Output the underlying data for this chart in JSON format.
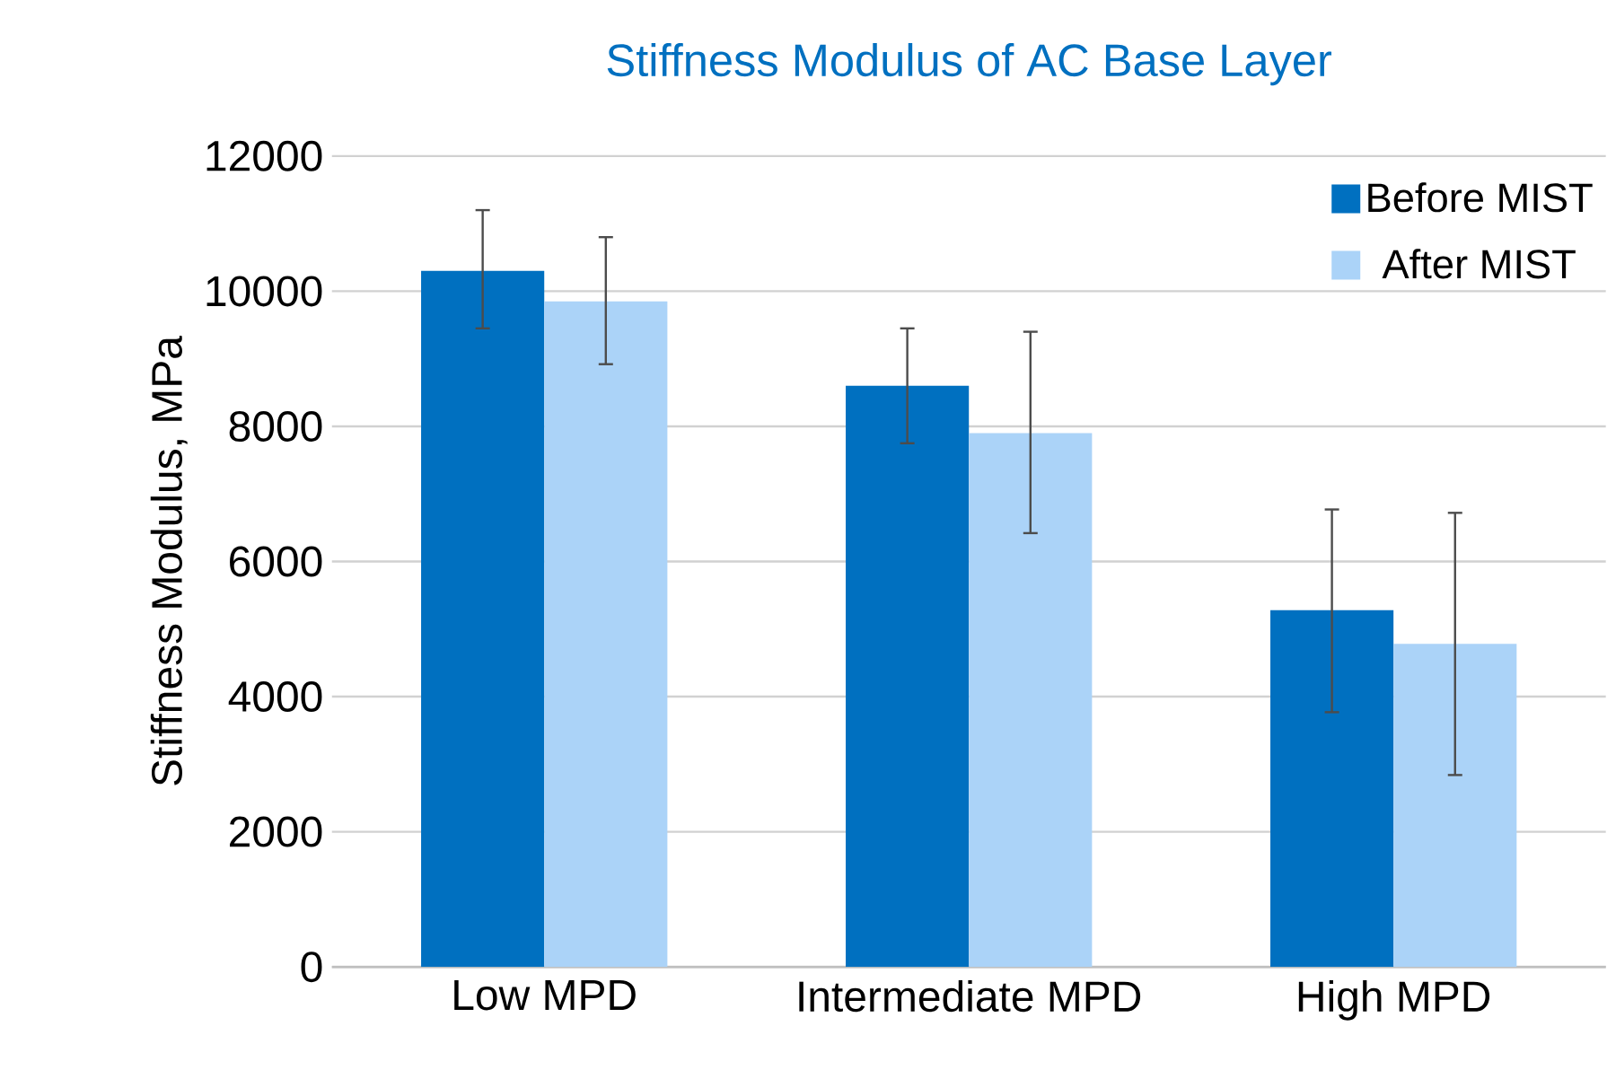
{
  "chart_data": {
    "type": "bar",
    "title": "Stiffness Modulus of AC Base Layer",
    "ylabel": "Stiffness Modulus, MPa",
    "categories": [
      "Low MPD",
      "Intermediate MPD",
      "High MPD"
    ],
    "series": [
      {
        "name": "Before MIST",
        "color": "#0070c0",
        "values": [
          10300,
          8600,
          5280
        ],
        "errors": [
          [
            9450,
            11200
          ],
          [
            7750,
            9450
          ],
          [
            3770,
            6770
          ]
        ]
      },
      {
        "name": "After MIST",
        "color": "#abd3f8",
        "values": [
          9850,
          7900,
          4780
        ],
        "errors": [
          [
            8920,
            10800
          ],
          [
            6420,
            9400
          ],
          [
            2840,
            6720
          ]
        ]
      }
    ],
    "ylim": [
      0,
      12000
    ],
    "yticks": [
      0,
      2000,
      4000,
      6000,
      8000,
      10000,
      12000
    ],
    "grid": "y",
    "legend": "top right"
  }
}
